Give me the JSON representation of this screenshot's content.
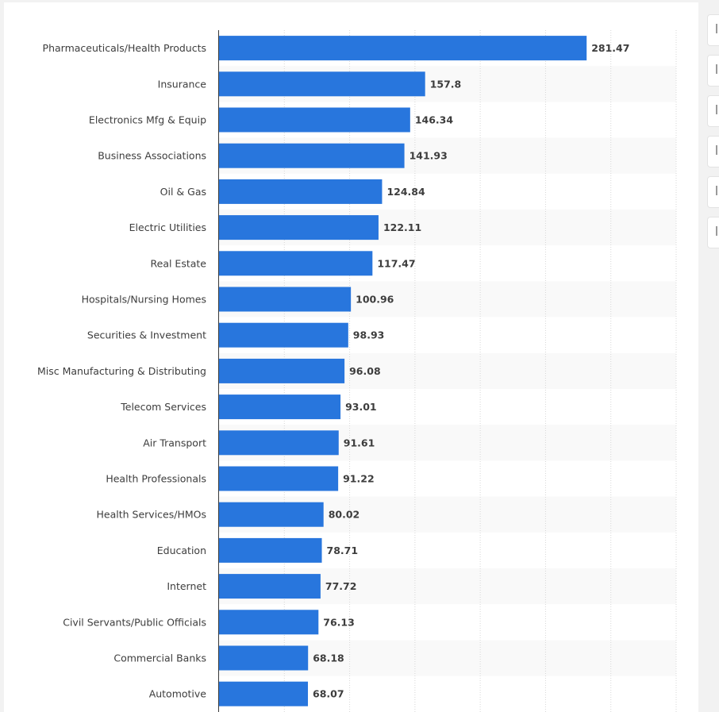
{
  "chart_data": {
    "type": "bar",
    "orientation": "horizontal",
    "title": "",
    "xlabel": "",
    "ylabel": "",
    "grid": true,
    "xlim": [
      0,
      350
    ],
    "categories": [
      "Pharmaceuticals/Health Products",
      "Insurance",
      "Electronics Mfg & Equip",
      "Business Associations",
      "Oil & Gas",
      "Electric Utilities",
      "Real Estate",
      "Hospitals/Nursing Homes",
      "Securities & Investment",
      "Misc Manufacturing & Distributing",
      "Telecom Services",
      "Air Transport",
      "Health Professionals",
      "Health Services/HMOs",
      "Education",
      "Internet",
      "Civil Servants/Public Officials",
      "Commercial Banks",
      "Automotive"
    ],
    "values": [
      281.47,
      157.8,
      146.34,
      141.93,
      124.84,
      122.11,
      117.47,
      100.96,
      98.93,
      96.08,
      93.01,
      91.61,
      91.22,
      80.02,
      78.71,
      77.72,
      76.13,
      68.18,
      68.07
    ],
    "value_labels": [
      "281.47",
      "157.8",
      "146.34",
      "141.93",
      "124.84",
      "122.11",
      "117.47",
      "100.96",
      "98.93",
      "96.08",
      "93.01",
      "91.61",
      "91.22",
      "80.02",
      "78.71",
      "77.72",
      "76.13",
      "68.18",
      "68.07"
    ],
    "colors": {
      "bar": "#2876dd",
      "stripe": "#f9f9f9",
      "grid": "#d7d7d7",
      "axis": "#3a3a3a"
    }
  },
  "toolbar": {
    "buttons": [
      {
        "icon": "download-icon"
      },
      {
        "icon": "notification-icon"
      },
      {
        "icon": "bookmark-icon"
      },
      {
        "icon": "settings-icon"
      },
      {
        "icon": "share-icon"
      },
      {
        "icon": "print-icon"
      }
    ]
  }
}
